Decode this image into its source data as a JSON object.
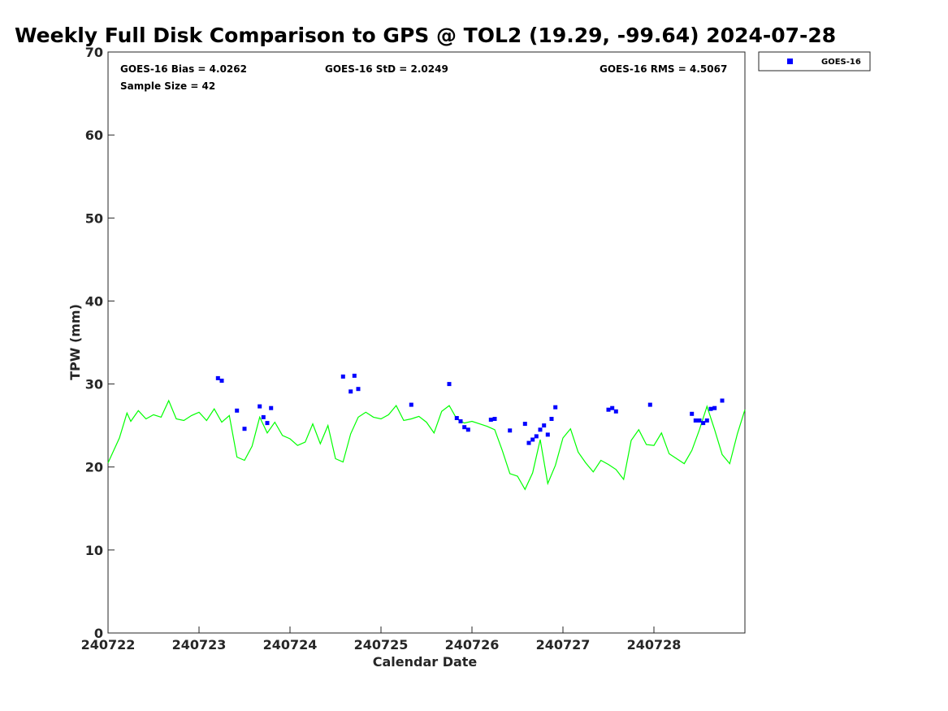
{
  "chart_data": {
    "type": "scatter",
    "title": "Weekly Full Disk Comparison to GPS @ TOL2 (19.29, -99.64) 2024-07-28",
    "xlabel": "Calendar Date",
    "ylabel": "TPW (mm)",
    "xlim": [
      "2024-07-22 00:00",
      "2024-07-29 00:00"
    ],
    "ylim": [
      0,
      70
    ],
    "xticks": [
      "240722",
      "240723",
      "240724",
      "240725",
      "240726",
      "240727",
      "240728"
    ],
    "yticks": [
      "0",
      "10",
      "20",
      "30",
      "40",
      "50",
      "60",
      "70"
    ],
    "grid": false,
    "legend_position": "top-right (outside plot)",
    "stats": {
      "bias": "GOES-16 Bias = 4.0262",
      "std": "GOES-16 StD = 2.0249",
      "rms": "GOES-16 RMS = 4.5067",
      "sample": "Sample Size = 42"
    },
    "series": [
      {
        "name": "GOES-16",
        "kind": "scatter",
        "marker": "square",
        "color": "#0000ff",
        "x": [
          "2024-07-23 05:00",
          "2024-07-23 06:00",
          "2024-07-23 10:00",
          "2024-07-23 12:00",
          "2024-07-23 16:00",
          "2024-07-23 17:00",
          "2024-07-23 18:00",
          "2024-07-23 19:00",
          "2024-07-24 14:00",
          "2024-07-24 16:00",
          "2024-07-24 17:00",
          "2024-07-24 18:00",
          "2024-07-25 08:00",
          "2024-07-25 18:00",
          "2024-07-25 20:00",
          "2024-07-25 21:00",
          "2024-07-25 22:00",
          "2024-07-25 23:00",
          "2024-07-26 05:00",
          "2024-07-26 06:00",
          "2024-07-26 10:00",
          "2024-07-26 14:00",
          "2024-07-26 15:00",
          "2024-07-26 16:00",
          "2024-07-26 17:00",
          "2024-07-26 18:00",
          "2024-07-26 19:00",
          "2024-07-26 20:00",
          "2024-07-26 21:00",
          "2024-07-26 22:00",
          "2024-07-27 12:00",
          "2024-07-27 13:00",
          "2024-07-27 14:00",
          "2024-07-27 23:00",
          "2024-07-28 10:00",
          "2024-07-28 11:00",
          "2024-07-28 12:00",
          "2024-07-28 13:00",
          "2024-07-28 14:00",
          "2024-07-28 15:00",
          "2024-07-28 16:00",
          "2024-07-28 18:00"
        ],
        "y": [
          30.7,
          30.4,
          26.8,
          24.6,
          27.3,
          26,
          25.3,
          27.1,
          30.9,
          29.1,
          31,
          29.4,
          27.5,
          30,
          25.9,
          25.5,
          24.8,
          24.5,
          25.7,
          25.8,
          24.4,
          25.2,
          22.9,
          23.3,
          23.7,
          24.5,
          25,
          23.9,
          25.8,
          27.2,
          26.9,
          27.1,
          26.7,
          27.5,
          26.4,
          25.6,
          25.6,
          25.3,
          25.6,
          27,
          27.1,
          28
        ]
      },
      {
        "name": "",
        "kind": "line",
        "color": "#00ff00",
        "x": [
          "2024-07-22 00:00",
          "2024-07-22 03:00",
          "2024-07-22 05:00",
          "2024-07-22 06:00",
          "2024-07-22 08:00",
          "2024-07-22 10:00",
          "2024-07-22 12:00",
          "2024-07-22 14:00",
          "2024-07-22 16:00",
          "2024-07-22 18:00",
          "2024-07-22 20:00",
          "2024-07-22 22:00",
          "2024-07-23 00:00",
          "2024-07-23 02:00",
          "2024-07-23 04:00",
          "2024-07-23 06:00",
          "2024-07-23 08:00",
          "2024-07-23 10:00",
          "2024-07-23 12:00",
          "2024-07-23 14:00",
          "2024-07-23 16:00",
          "2024-07-23 18:00",
          "2024-07-23 20:00",
          "2024-07-23 22:00",
          "2024-07-24 00:00",
          "2024-07-24 02:00",
          "2024-07-24 04:00",
          "2024-07-24 06:00",
          "2024-07-24 08:00",
          "2024-07-24 10:00",
          "2024-07-24 12:00",
          "2024-07-24 14:00",
          "2024-07-24 16:00",
          "2024-07-24 18:00",
          "2024-07-24 20:00",
          "2024-07-24 22:00",
          "2024-07-25 00:00",
          "2024-07-25 02:00",
          "2024-07-25 04:00",
          "2024-07-25 06:00",
          "2024-07-25 08:00",
          "2024-07-25 10:00",
          "2024-07-25 12:00",
          "2024-07-25 14:00",
          "2024-07-25 16:00",
          "2024-07-25 18:00",
          "2024-07-25 20:00",
          "2024-07-25 22:00",
          "2024-07-26 00:00",
          "2024-07-26 02:00",
          "2024-07-26 04:00",
          "2024-07-26 06:00",
          "2024-07-26 08:00",
          "2024-07-26 10:00",
          "2024-07-26 12:00",
          "2024-07-26 14:00",
          "2024-07-26 16:00",
          "2024-07-26 18:00",
          "2024-07-26 20:00",
          "2024-07-26 22:00",
          "2024-07-27 00:00",
          "2024-07-27 02:00",
          "2024-07-27 04:00",
          "2024-07-27 06:00",
          "2024-07-27 08:00",
          "2024-07-27 10:00",
          "2024-07-27 12:00",
          "2024-07-27 14:00",
          "2024-07-27 16:00",
          "2024-07-27 18:00",
          "2024-07-27 20:00",
          "2024-07-27 22:00",
          "2024-07-28 00:00",
          "2024-07-28 02:00",
          "2024-07-28 04:00",
          "2024-07-28 06:00",
          "2024-07-28 08:00",
          "2024-07-28 10:00",
          "2024-07-28 12:00",
          "2024-07-28 14:00",
          "2024-07-28 16:00",
          "2024-07-28 18:00",
          "2024-07-28 20:00",
          "2024-07-28 22:00",
          "2024-07-29 00:00"
        ],
        "y": [
          20.5,
          23.5,
          26.5,
          25.5,
          26.8,
          25.8,
          26.3,
          26.0,
          28.0,
          25.8,
          25.6,
          26.2,
          26.6,
          25.6,
          27.0,
          25.4,
          26.2,
          21.2,
          20.8,
          22.5,
          26.0,
          24.1,
          25.4,
          23.8,
          23.4,
          22.6,
          23.0,
          25.2,
          22.8,
          25.0,
          21.0,
          20.6,
          24.0,
          26.0,
          26.6,
          26.0,
          25.8,
          26.3,
          27.4,
          25.6,
          25.8,
          26.1,
          25.4,
          24.1,
          26.7,
          27.4,
          25.8,
          25.3,
          25.5,
          25.2,
          24.9,
          24.5,
          22.0,
          19.2,
          18.9,
          17.3,
          19.3,
          23.3,
          18.0,
          20.2,
          23.5,
          24.6,
          21.8,
          20.5,
          19.4,
          20.8,
          20.3,
          19.7,
          18.5,
          23.2,
          24.5,
          22.7,
          22.6,
          24.1,
          21.6,
          21.0,
          20.4,
          22.0,
          24.5,
          27.3,
          24.5,
          21.5,
          20.4,
          24.0,
          26.9
        ]
      }
    ]
  }
}
